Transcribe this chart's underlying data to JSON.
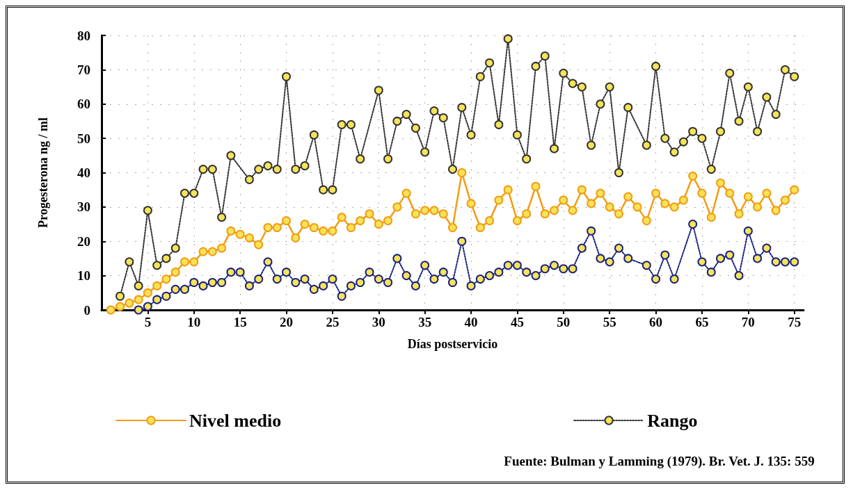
{
  "chart_data": {
    "type": "line",
    "xlabel": "Días postservicio",
    "ylabel": "Progesterona ng / ml",
    "xlim": [
      0,
      76
    ],
    "ylim": [
      0,
      80
    ],
    "xticks": [
      5,
      10,
      15,
      20,
      25,
      30,
      35,
      40,
      45,
      50,
      55,
      60,
      65,
      70,
      75
    ],
    "yticks": [
      0,
      10,
      20,
      30,
      40,
      50,
      60,
      70,
      80
    ],
    "grid": true,
    "legend": "bottom",
    "marker": "circle",
    "annotations": [
      "Fuente: Bulman y Lamming (1979). Br. Vet. J. 135: 559"
    ],
    "series": [
      {
        "name": "Nivel medio",
        "color": "#f39c12",
        "line_style": "solid",
        "x": [
          1,
          2,
          3,
          4,
          5,
          6,
          7,
          8,
          9,
          10,
          11,
          12,
          13,
          14,
          15,
          16,
          17,
          18,
          19,
          20,
          21,
          22,
          23,
          24,
          25,
          26,
          27,
          28,
          29,
          30,
          31,
          32,
          33,
          34,
          35,
          36,
          37,
          38,
          39,
          40,
          41,
          42,
          43,
          44,
          45,
          46,
          47,
          48,
          49,
          50,
          51,
          52,
          53,
          54,
          55,
          56,
          57,
          58,
          59,
          60,
          61,
          62,
          63,
          64,
          65,
          66,
          67,
          68,
          69,
          70,
          71,
          72,
          73,
          74,
          75
        ],
        "values": [
          0,
          1,
          2,
          3,
          5,
          7,
          9,
          11,
          14,
          14,
          17,
          17,
          18,
          23,
          22,
          21,
          19,
          24,
          24,
          26,
          21,
          25,
          24,
          23,
          23,
          27,
          24,
          26,
          28,
          25,
          26,
          30,
          34,
          28,
          29,
          29,
          28,
          24,
          40,
          31,
          24,
          26,
          32,
          35,
          26,
          28,
          36,
          28,
          29,
          32,
          29,
          35,
          31,
          34,
          30,
          28,
          33,
          30,
          26,
          34,
          31,
          30,
          32,
          39,
          34,
          27,
          37,
          34,
          28,
          33,
          30,
          34,
          29,
          32,
          35
        ]
      },
      {
        "name": "Rango",
        "color": "#333333",
        "line_style": "dotted",
        "x": [
          2,
          3,
          4,
          5,
          6,
          7,
          8,
          9,
          10,
          11,
          12,
          13,
          14,
          16,
          17,
          18,
          19,
          20,
          21,
          22,
          23,
          24,
          25,
          26,
          27,
          28,
          30,
          31,
          32,
          33,
          34,
          35,
          36,
          37,
          38,
          39,
          40,
          41,
          42,
          43,
          44,
          45,
          46,
          47,
          48,
          49,
          50,
          51,
          52,
          53,
          54,
          55,
          56,
          57,
          59,
          60,
          61,
          62,
          63,
          64,
          65,
          66,
          67,
          68,
          69,
          70,
          71,
          72,
          73,
          74,
          75
        ],
        "values": [
          4,
          14,
          7,
          29,
          13,
          15,
          18,
          34,
          34,
          41,
          41,
          27,
          45,
          38,
          41,
          42,
          41,
          68,
          41,
          42,
          51,
          35,
          35,
          54,
          54,
          44,
          64,
          44,
          55,
          57,
          53,
          46,
          58,
          56,
          41,
          59,
          51,
          68,
          72,
          54,
          79,
          51,
          44,
          71,
          74,
          47,
          69,
          66,
          65,
          48,
          60,
          65,
          40,
          59,
          48,
          71,
          50,
          46,
          49,
          52,
          50,
          41,
          52,
          69,
          55,
          65,
          52,
          62,
          57,
          70,
          68
        ]
      },
      {
        "color": "#1a237e",
        "line_style": "dotted",
        "x": [
          4,
          5,
          6,
          7,
          8,
          9,
          10,
          11,
          12,
          13,
          14,
          15,
          16,
          17,
          18,
          19,
          20,
          21,
          22,
          23,
          24,
          25,
          26,
          27,
          28,
          29,
          30,
          31,
          32,
          33,
          34,
          35,
          36,
          37,
          38,
          39,
          40,
          41,
          42,
          43,
          44,
          45,
          46,
          47,
          48,
          49,
          50,
          51,
          52,
          53,
          54,
          55,
          56,
          57,
          59,
          60,
          61,
          62,
          64,
          65,
          66,
          67,
          68,
          69,
          70,
          71,
          72,
          73,
          74,
          75
        ],
        "values": [
          0,
          1,
          3,
          4,
          6,
          6,
          8,
          7,
          8,
          8,
          11,
          11,
          7,
          9,
          14,
          9,
          11,
          8,
          9,
          6,
          7,
          9,
          4,
          7,
          8,
          11,
          9,
          8,
          15,
          10,
          7,
          13,
          9,
          11,
          8,
          20,
          7,
          9,
          10,
          11,
          13,
          13,
          11,
          10,
          12,
          13,
          12,
          12,
          18,
          23,
          15,
          14,
          18,
          15,
          13,
          9,
          16,
          9,
          25,
          14,
          11,
          15,
          16,
          10,
          23,
          15,
          18,
          14,
          14,
          14
        ]
      }
    ]
  }
}
